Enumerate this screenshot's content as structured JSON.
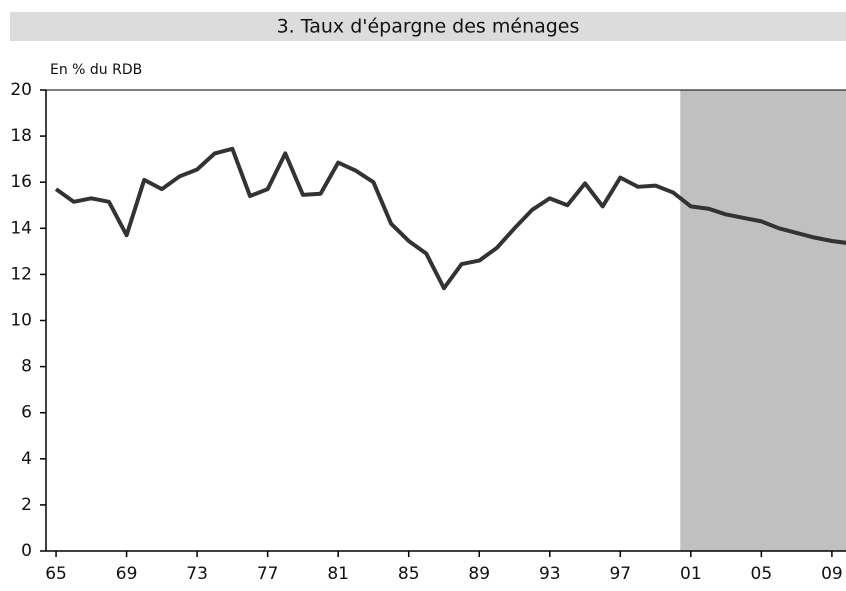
{
  "chart_data": {
    "type": "line",
    "title": "3. Taux d'épargne des ménages",
    "y_label": "En % du RDB",
    "x": [
      1965,
      1966,
      1967,
      1968,
      1969,
      1970,
      1971,
      1972,
      1973,
      1974,
      1975,
      1976,
      1977,
      1978,
      1979,
      1980,
      1981,
      1982,
      1983,
      1984,
      1985,
      1986,
      1987,
      1988,
      1989,
      1990,
      1991,
      1992,
      1993,
      1994,
      1995,
      1996,
      1997,
      1998,
      1999,
      2000,
      2001,
      2002,
      2003,
      2004,
      2005,
      2006,
      2007,
      2008,
      2009,
      2010
    ],
    "series": [
      {
        "name": "Taux d'épargne",
        "color": "#333333",
        "values": [
          15.7,
          15.15,
          15.3,
          15.15,
          13.7,
          16.1,
          15.7,
          16.25,
          16.55,
          17.25,
          17.45,
          15.4,
          15.7,
          17.25,
          15.45,
          15.5,
          16.85,
          16.5,
          16.0,
          14.2,
          13.45,
          12.9,
          11.4,
          12.45,
          12.6,
          13.15,
          14.0,
          14.8,
          15.3,
          15.0,
          15.95,
          14.95,
          16.2,
          15.8,
          15.85,
          15.55,
          14.95,
          14.85,
          14.6,
          14.45,
          14.3,
          14.0,
          13.8,
          13.6,
          13.45,
          13.35
        ]
      }
    ],
    "xlim": [
      1964.43,
      2009.8
    ],
    "ylim": [
      0,
      20
    ],
    "xticks": [
      {
        "value": 1965,
        "label": "65"
      },
      {
        "value": 1969,
        "label": "69"
      },
      {
        "value": 1973,
        "label": "73"
      },
      {
        "value": 1977,
        "label": "77"
      },
      {
        "value": 1981,
        "label": "81"
      },
      {
        "value": 1985,
        "label": "85"
      },
      {
        "value": 1989,
        "label": "89"
      },
      {
        "value": 1993,
        "label": "93"
      },
      {
        "value": 1997,
        "label": "97"
      },
      {
        "value": 2001,
        "label": "01"
      },
      {
        "value": 2005,
        "label": "05"
      },
      {
        "value": 2009,
        "label": "09"
      }
    ],
    "yticks": [
      0,
      2,
      4,
      6,
      8,
      10,
      12,
      14,
      16,
      18,
      20
    ],
    "shaded_region": [
      2000.4,
      2009.8
    ],
    "shade_color": "#c0c0c0"
  }
}
